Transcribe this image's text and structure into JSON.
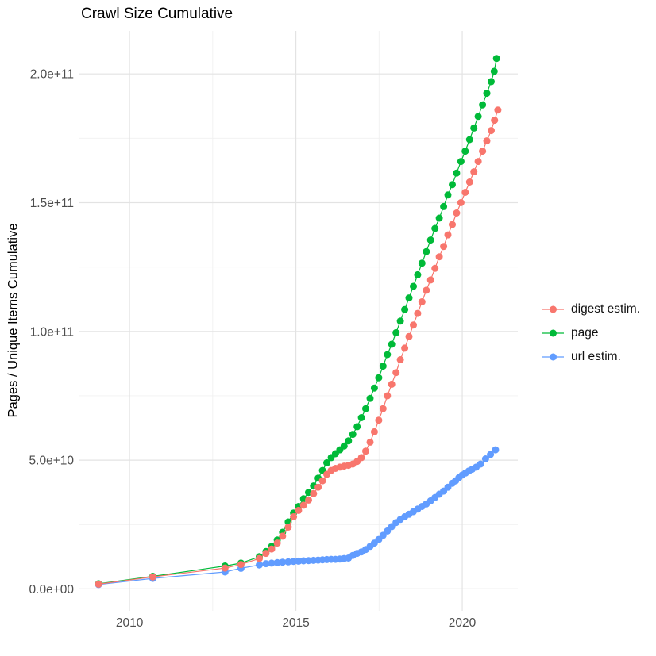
{
  "title": "Crawl Size Cumulative",
  "y_axis_title": "Pages / Unique Items Cumulative",
  "colors": {
    "digest": "#F8766D",
    "page": "#00BA38",
    "url": "#619CFF",
    "grid_major": "#E3E3E3",
    "grid_minor": "#F0F0F0",
    "tick_text": "#4d4d4d",
    "title_text": "#000000"
  },
  "legend": {
    "position": "right",
    "items": [
      {
        "label": "digest estim.",
        "color": "#F8766D"
      },
      {
        "label": "page",
        "color": "#00BA38"
      },
      {
        "label": "url estim.",
        "color": "#619CFF"
      }
    ]
  },
  "chart_data": {
    "type": "scatter",
    "mark": "point+line",
    "title": "Crawl Size Cumulative",
    "xlabel": "",
    "ylabel": "Pages / Unique Items Cumulative",
    "grid": true,
    "legend_position": "right",
    "xlim": [
      2008.47,
      2021.67
    ],
    "ylim": [
      -8500000000.0,
      216700000000.0
    ],
    "x_ticks": {
      "values": [
        2010,
        2015,
        2020
      ],
      "labels": [
        "2010",
        "2015",
        "2020"
      ],
      "minor": [
        2012.5,
        2017.5
      ]
    },
    "y_ticks": {
      "values": [
        0,
        50000000000.0,
        100000000000.0,
        150000000000.0,
        200000000000.0
      ],
      "labels": [
        "0.0e+00",
        "5.0e+10",
        "1.0e+11",
        "1.5e+11",
        "2.0e+11"
      ],
      "minor": [
        25000000000.0,
        75000000000.0,
        125000000000.0,
        175000000000.0
      ]
    },
    "series": [
      {
        "name": "digest estim.",
        "color": "#F8766D",
        "points": [
          [
            2009.07,
            1850000000.0
          ],
          [
            2010.7,
            4700000000.0
          ],
          [
            2012.87,
            8100000000.0
          ],
          [
            2013.35,
            9500000000.0
          ],
          [
            2013.9,
            11800000000.0
          ],
          [
            2014.1,
            13800000000.0
          ],
          [
            2014.27,
            15500000000.0
          ],
          [
            2014.44,
            17800000000.0
          ],
          [
            2014.6,
            20500000000.0
          ],
          [
            2014.77,
            24000000000.0
          ],
          [
            2014.93,
            28000000000.0
          ],
          [
            2015.08,
            30500000000.0
          ],
          [
            2015.23,
            32500000000.0
          ],
          [
            2015.38,
            34500000000.0
          ],
          [
            2015.53,
            37000000000.0
          ],
          [
            2015.67,
            39500000000.0
          ],
          [
            2015.8,
            42000000000.0
          ],
          [
            2015.93,
            44500000000.0
          ],
          [
            2016.06,
            46000000000.0
          ],
          [
            2016.19,
            46800000000.0
          ],
          [
            2016.32,
            47300000000.0
          ],
          [
            2016.45,
            47700000000.0
          ],
          [
            2016.58,
            48000000000.0
          ],
          [
            2016.71,
            48500000000.0
          ],
          [
            2016.84,
            49500000000.0
          ],
          [
            2016.97,
            51000000000.0
          ],
          [
            2017.1,
            53500000000.0
          ],
          [
            2017.23,
            57000000000.0
          ],
          [
            2017.36,
            61000000000.0
          ],
          [
            2017.49,
            65500000000.0
          ],
          [
            2017.62,
            70000000000.0
          ],
          [
            2017.75,
            75000000000.0
          ],
          [
            2017.88,
            79500000000.0
          ],
          [
            2018.01,
            84000000000.0
          ],
          [
            2018.14,
            89000000000.0
          ],
          [
            2018.27,
            93500000000.0
          ],
          [
            2018.4,
            98000000000.0
          ],
          [
            2018.53,
            102500000000.0
          ],
          [
            2018.66,
            107000000000.0
          ],
          [
            2018.79,
            111500000000.0
          ],
          [
            2018.92,
            116000000000.0
          ],
          [
            2019.05,
            120000000000.0
          ],
          [
            2019.18,
            124500000000.0
          ],
          [
            2019.31,
            129000000000.0
          ],
          [
            2019.44,
            133000000000.0
          ],
          [
            2019.57,
            137500000000.0
          ],
          [
            2019.7,
            141500000000.0
          ],
          [
            2019.83,
            146000000000.0
          ],
          [
            2019.96,
            150000000000.0
          ],
          [
            2020.09,
            154000000000.0
          ],
          [
            2020.22,
            158000000000.0
          ],
          [
            2020.35,
            162000000000.0
          ],
          [
            2020.48,
            166000000000.0
          ],
          [
            2020.61,
            170000000000.0
          ],
          [
            2020.74,
            174000000000.0
          ],
          [
            2020.87,
            178000000000.0
          ],
          [
            2020.97,
            182000000000.0
          ],
          [
            2021.07,
            186000000000.0
          ]
        ]
      },
      {
        "name": "page",
        "color": "#00BA38",
        "points": [
          [
            2009.07,
            2000000000.0
          ],
          [
            2010.7,
            4900000000.0
          ],
          [
            2012.87,
            8900000000.0
          ],
          [
            2013.35,
            10000000000.0
          ],
          [
            2013.9,
            12500000000.0
          ],
          [
            2014.1,
            14500000000.0
          ],
          [
            2014.27,
            16500000000.0
          ],
          [
            2014.44,
            19000000000.0
          ],
          [
            2014.6,
            22000000000.0
          ],
          [
            2014.77,
            26000000000.0
          ],
          [
            2014.93,
            29500000000.0
          ],
          [
            2015.08,
            32000000000.0
          ],
          [
            2015.23,
            35000000000.0
          ],
          [
            2015.38,
            37500000000.0
          ],
          [
            2015.53,
            40000000000.0
          ],
          [
            2015.67,
            43000000000.0
          ],
          [
            2015.8,
            46000000000.0
          ],
          [
            2015.93,
            49000000000.0
          ],
          [
            2016.06,
            51000000000.0
          ],
          [
            2016.19,
            52500000000.0
          ],
          [
            2016.32,
            54000000000.0
          ],
          [
            2016.45,
            55500000000.0
          ],
          [
            2016.58,
            57500000000.0
          ],
          [
            2016.71,
            60000000000.0
          ],
          [
            2016.84,
            63000000000.0
          ],
          [
            2016.97,
            66500000000.0
          ],
          [
            2017.1,
            70000000000.0
          ],
          [
            2017.23,
            74000000000.0
          ],
          [
            2017.36,
            78000000000.0
          ],
          [
            2017.49,
            82000000000.0
          ],
          [
            2017.62,
            86500000000.0
          ],
          [
            2017.75,
            91000000000.0
          ],
          [
            2017.88,
            95000000000.0
          ],
          [
            2018.01,
            99500000000.0
          ],
          [
            2018.14,
            104000000000.0
          ],
          [
            2018.27,
            108500000000.0
          ],
          [
            2018.4,
            113000000000.0
          ],
          [
            2018.53,
            117500000000.0
          ],
          [
            2018.66,
            122000000000.0
          ],
          [
            2018.79,
            126500000000.0
          ],
          [
            2018.92,
            131000000000.0
          ],
          [
            2019.05,
            135500000000.0
          ],
          [
            2019.18,
            140000000000.0
          ],
          [
            2019.31,
            144000000000.0
          ],
          [
            2019.44,
            148500000000.0
          ],
          [
            2019.57,
            153000000000.0
          ],
          [
            2019.7,
            157000000000.0
          ],
          [
            2019.83,
            161500000000.0
          ],
          [
            2019.96,
            166000000000.0
          ],
          [
            2020.09,
            170000000000.0
          ],
          [
            2020.22,
            174500000000.0
          ],
          [
            2020.35,
            179000000000.0
          ],
          [
            2020.48,
            183500000000.0
          ],
          [
            2020.61,
            188000000000.0
          ],
          [
            2020.74,
            192500000000.0
          ],
          [
            2020.87,
            197000000000.0
          ],
          [
            2020.96,
            201000000000.0
          ],
          [
            2021.03,
            206000000000.0
          ]
        ]
      },
      {
        "name": "url estim.",
        "color": "#619CFF",
        "points": [
          [
            2009.07,
            1700000000.0
          ],
          [
            2010.7,
            4100000000.0
          ],
          [
            2012.87,
            6600000000.0
          ],
          [
            2013.35,
            8000000000.0
          ],
          [
            2013.9,
            9300000000.0
          ],
          [
            2014.1,
            9800000000.0
          ],
          [
            2014.27,
            10000000000.0
          ],
          [
            2014.44,
            10200000000.0
          ],
          [
            2014.6,
            10400000000.0
          ],
          [
            2014.77,
            10500000000.0
          ],
          [
            2014.93,
            10700000000.0
          ],
          [
            2015.08,
            10800000000.0
          ],
          [
            2015.23,
            10900000000.0
          ],
          [
            2015.38,
            11000000000.0
          ],
          [
            2015.53,
            11100000000.0
          ],
          [
            2015.67,
            11200000000.0
          ],
          [
            2015.8,
            11300000000.0
          ],
          [
            2015.93,
            11400000000.0
          ],
          [
            2016.06,
            11500000000.0
          ],
          [
            2016.19,
            11500000000.0
          ],
          [
            2016.32,
            11600000000.0
          ],
          [
            2016.45,
            11800000000.0
          ],
          [
            2016.58,
            12000000000.0
          ],
          [
            2016.71,
            13000000000.0
          ],
          [
            2016.84,
            13800000000.0
          ],
          [
            2016.97,
            14400000000.0
          ],
          [
            2017.1,
            15300000000.0
          ],
          [
            2017.23,
            16500000000.0
          ],
          [
            2017.36,
            17800000000.0
          ],
          [
            2017.49,
            19200000000.0
          ],
          [
            2017.62,
            20800000000.0
          ],
          [
            2017.75,
            22500000000.0
          ],
          [
            2017.88,
            24200000000.0
          ],
          [
            2018.01,
            25800000000.0
          ],
          [
            2018.14,
            27000000000.0
          ],
          [
            2018.27,
            28000000000.0
          ],
          [
            2018.4,
            29000000000.0
          ],
          [
            2018.53,
            30000000000.0
          ],
          [
            2018.66,
            31000000000.0
          ],
          [
            2018.79,
            32000000000.0
          ],
          [
            2018.92,
            33000000000.0
          ],
          [
            2019.05,
            34200000000.0
          ],
          [
            2019.18,
            35500000000.0
          ],
          [
            2019.31,
            36800000000.0
          ],
          [
            2019.44,
            38000000000.0
          ],
          [
            2019.57,
            39500000000.0
          ],
          [
            2019.7,
            41000000000.0
          ],
          [
            2019.8,
            42000000000.0
          ],
          [
            2019.9,
            43200000000.0
          ],
          [
            2020.0,
            44200000000.0
          ],
          [
            2020.1,
            45000000000.0
          ],
          [
            2020.2,
            45800000000.0
          ],
          [
            2020.3,
            46500000000.0
          ],
          [
            2020.42,
            47300000000.0
          ],
          [
            2020.55,
            48500000000.0
          ],
          [
            2020.7,
            50500000000.0
          ],
          [
            2020.85,
            52200000000.0
          ],
          [
            2021.0,
            54000000000.0
          ]
        ]
      }
    ]
  }
}
